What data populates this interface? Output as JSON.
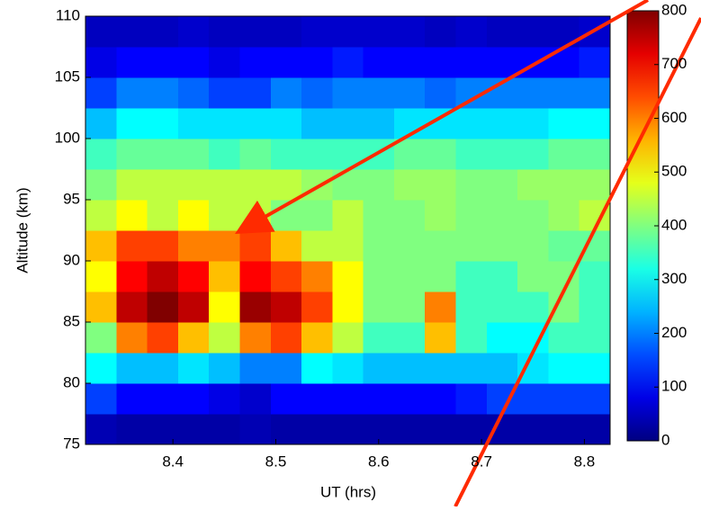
{
  "chart_data": {
    "type": "heatmap",
    "xlabel": "UT (hrs)",
    "ylabel": "Altitude (km)",
    "x": [
      8.33,
      8.36,
      8.39,
      8.42,
      8.45,
      8.48,
      8.51,
      8.54,
      8.57,
      8.6,
      8.63,
      8.66,
      8.69,
      8.72,
      8.75,
      8.78,
      8.81
    ],
    "y": [
      76.25,
      78.75,
      81.25,
      83.75,
      86.25,
      88.75,
      91.25,
      93.75,
      96.25,
      98.75,
      101.25,
      103.75,
      106.25,
      108.75
    ],
    "values": [
      [
        40,
        30,
        30,
        30,
        30,
        40,
        30,
        30,
        30,
        30,
        30,
        30,
        30,
        30,
        30,
        30,
        30
      ],
      [
        150,
        100,
        100,
        100,
        80,
        60,
        100,
        100,
        100,
        100,
        100,
        100,
        120,
        150,
        150,
        150,
        150
      ],
      [
        300,
        250,
        250,
        280,
        250,
        200,
        200,
        300,
        280,
        250,
        250,
        250,
        250,
        250,
        280,
        300,
        300
      ],
      [
        400,
        600,
        650,
        550,
        450,
        600,
        650,
        550,
        450,
        350,
        350,
        550,
        350,
        300,
        300,
        350,
        350
      ],
      [
        550,
        750,
        800,
        750,
        500,
        780,
        750,
        650,
        500,
        400,
        400,
        600,
        350,
        350,
        350,
        400,
        350
      ],
      [
        500,
        700,
        750,
        700,
        550,
        700,
        650,
        600,
        500,
        400,
        400,
        400,
        350,
        350,
        400,
        400,
        350
      ],
      [
        550,
        650,
        650,
        600,
        600,
        650,
        550,
        450,
        450,
        400,
        400,
        400,
        400,
        400,
        400,
        380,
        380
      ],
      [
        450,
        500,
        450,
        500,
        450,
        450,
        400,
        400,
        450,
        400,
        400,
        420,
        400,
        400,
        400,
        420,
        450
      ],
      [
        400,
        450,
        450,
        450,
        450,
        450,
        450,
        420,
        400,
        400,
        420,
        420,
        400,
        400,
        420,
        420,
        420
      ],
      [
        350,
        380,
        380,
        380,
        350,
        380,
        350,
        350,
        350,
        350,
        380,
        380,
        350,
        350,
        350,
        380,
        380
      ],
      [
        250,
        300,
        300,
        280,
        280,
        280,
        280,
        250,
        250,
        250,
        280,
        280,
        280,
        280,
        280,
        300,
        300
      ],
      [
        150,
        200,
        200,
        180,
        150,
        150,
        200,
        180,
        200,
        200,
        200,
        180,
        200,
        200,
        200,
        200,
        200
      ],
      [
        80,
        100,
        100,
        100,
        80,
        100,
        100,
        100,
        120,
        100,
        100,
        100,
        100,
        100,
        100,
        100,
        120
      ],
      [
        50,
        50,
        50,
        60,
        50,
        50,
        50,
        60,
        60,
        60,
        60,
        50,
        60,
        50,
        50,
        50,
        60
      ]
    ],
    "xlim": [
      8.315,
      8.825
    ],
    "xticks": [
      8.4,
      8.5,
      8.6,
      8.7,
      8.8
    ],
    "ylim": [
      75,
      110
    ],
    "yticks": [
      75,
      80,
      85,
      90,
      95,
      100,
      105,
      110
    ],
    "clim": [
      0,
      800
    ],
    "cticks": [
      0,
      100,
      200,
      300,
      400,
      500,
      600,
      700,
      800
    ],
    "colormap": "jet"
  }
}
